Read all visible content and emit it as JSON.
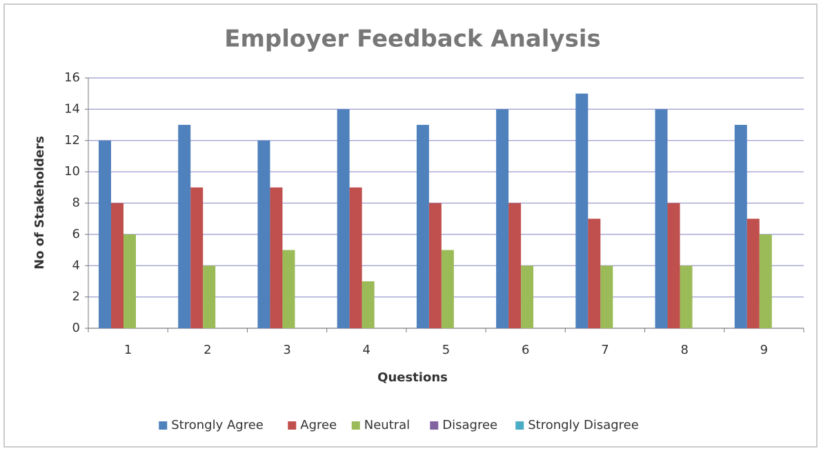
{
  "chart_data": {
    "type": "bar",
    "title": "Employer Feedback Analysis",
    "x_label": "Questions",
    "y_label": "No of Stakeholders",
    "categories": [
      "1",
      "2",
      "3",
      "4",
      "5",
      "6",
      "7",
      "8",
      "9"
    ],
    "series": [
      {
        "name": "Strongly Agree",
        "color": "#4f81bd",
        "values": [
          12,
          13,
          12,
          14,
          13,
          14,
          15,
          14,
          13
        ]
      },
      {
        "name": "Agree",
        "color": "#c0504d",
        "values": [
          8,
          9,
          9,
          9,
          8,
          8,
          7,
          8,
          7
        ]
      },
      {
        "name": "Neutral",
        "color": "#9bbb59",
        "values": [
          6,
          4,
          5,
          3,
          5,
          4,
          4,
          4,
          6
        ]
      },
      {
        "name": "Disagree",
        "color": "#8064a2",
        "values": [
          0,
          0,
          0,
          0,
          0,
          0,
          0,
          0,
          0
        ]
      },
      {
        "name": "Strongly Disagree",
        "color": "#4bacc6",
        "values": [
          0,
          0,
          0,
          0,
          0,
          0,
          0,
          0,
          0
        ]
      }
    ],
    "ylim": [
      0,
      16
    ],
    "yticks": [
      0,
      2,
      4,
      6,
      8,
      10,
      12,
      14,
      16
    ],
    "grid": true,
    "legend": "bottom"
  }
}
